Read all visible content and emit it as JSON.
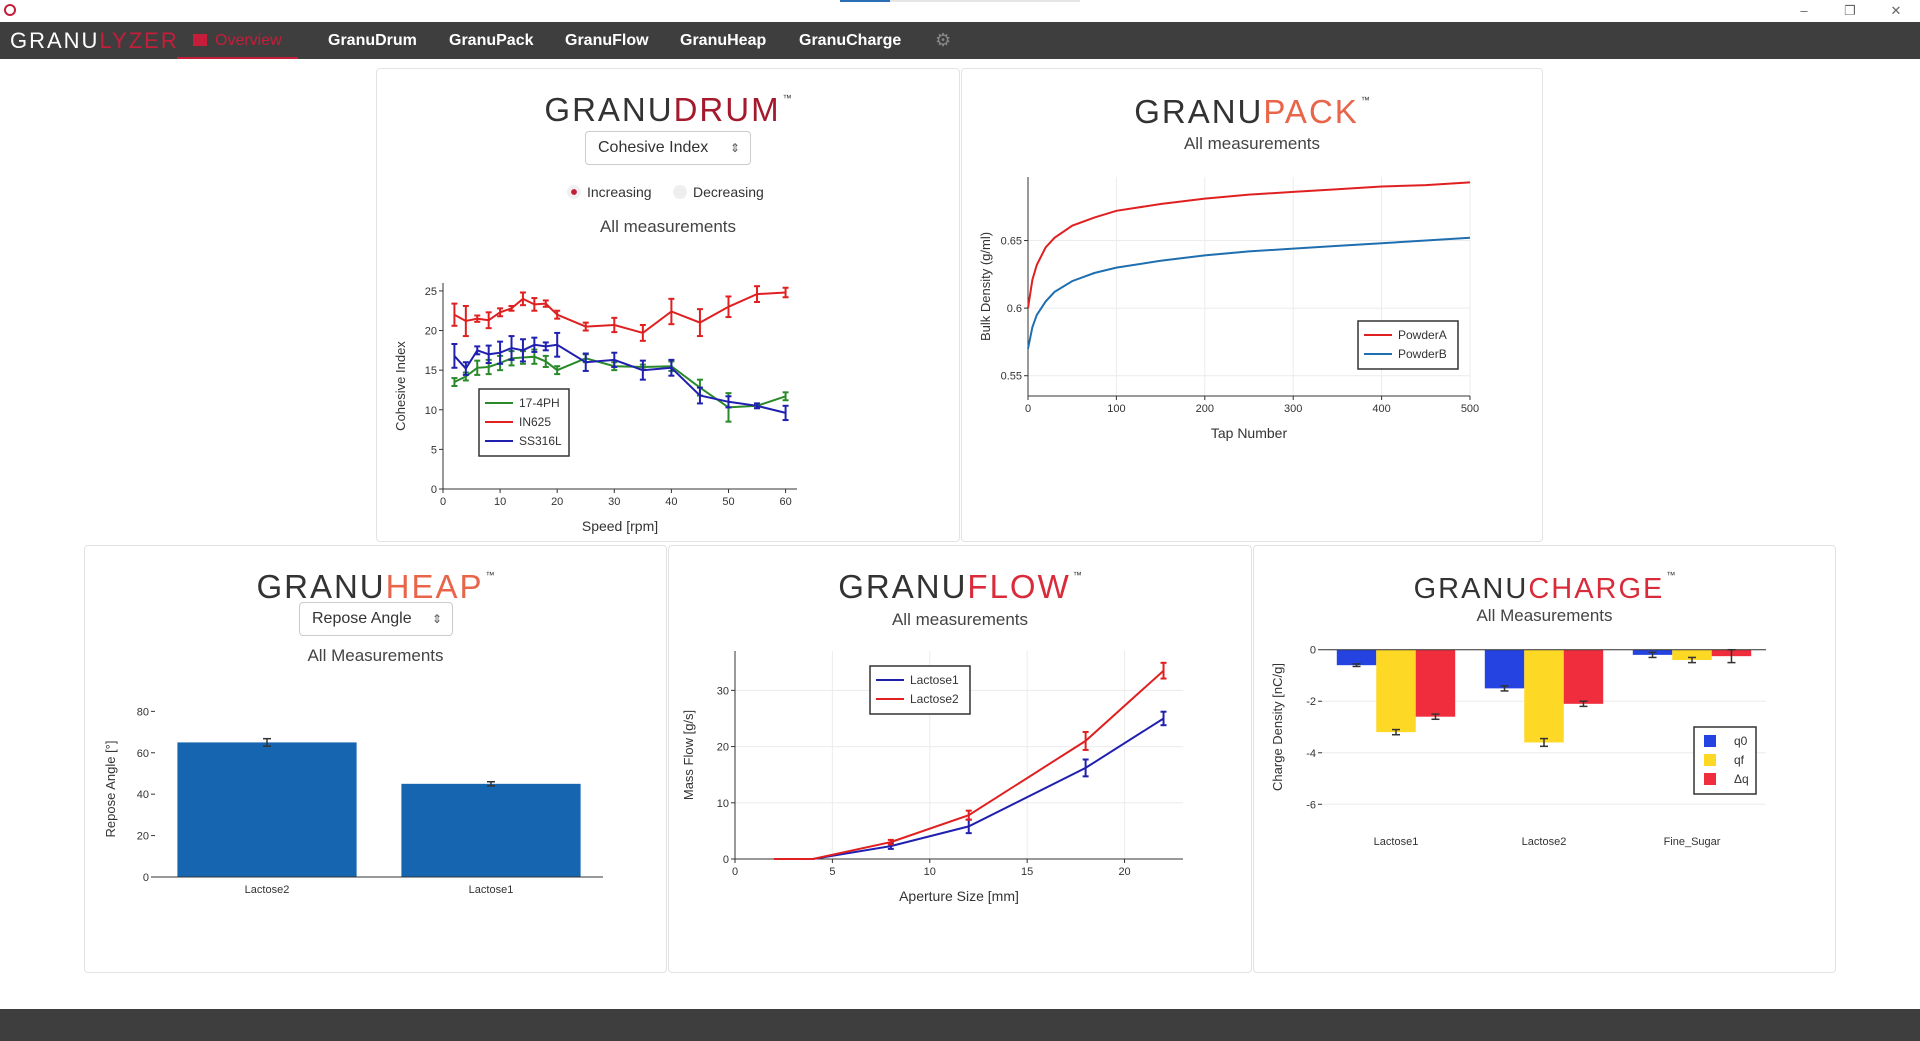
{
  "nav": {
    "logo_a": "GRANU",
    "logo_b": "LYZER",
    "items": [
      "Overview",
      "GranuDrum",
      "GranuPack",
      "GranuFlow",
      "GranuHeap",
      "GranuCharge"
    ]
  },
  "window": {
    "minimize": "–",
    "restore": "❐",
    "close": "✕"
  },
  "colors": {
    "brand_red": "#c41e3a",
    "nav_bg": "#3e3e3e"
  },
  "icons": {
    "gear": "gear-icon",
    "app": "app-icon"
  },
  "drum": {
    "brand_a": "GRANU",
    "brand_b": "DRUM",
    "tm": "™",
    "select_value": "Cohesive Index",
    "radio_increasing": "Increasing",
    "radio_decreasing": "Decreasing",
    "subtitle": "All measurements"
  },
  "pack": {
    "brand_a": "GRANU",
    "brand_b": "PACK",
    "tm": "™",
    "subtitle": "All measurements"
  },
  "heap": {
    "brand_a": "GRANU",
    "brand_b": "HEAP",
    "tm": "™",
    "select_value": "Repose Angle",
    "subtitle": "All Measurements"
  },
  "flow": {
    "brand_a": "GRANU",
    "brand_b": "FLOW",
    "tm": "™",
    "subtitle": "All measurements"
  },
  "charge": {
    "brand_a": "GRANU",
    "brand_b": "CHARGE",
    "tm": "™",
    "subtitle": "All Measurements"
  },
  "chart_data": [
    {
      "id": "drum",
      "type": "line",
      "xlabel": "Speed [rpm]",
      "ylabel": "Cohesive Index",
      "xlim": [
        0,
        62
      ],
      "ylim": [
        0,
        26
      ],
      "xticks": [
        0,
        10,
        20,
        30,
        40,
        50,
        60
      ],
      "yticks": [
        0,
        5,
        10,
        15,
        20,
        25
      ],
      "legend_position": "bottom-left",
      "series": [
        {
          "name": "17-4PH",
          "color": "#2a8a2a",
          "x": [
            2,
            4,
            6,
            8,
            10,
            12,
            14,
            16,
            18,
            20,
            25,
            30,
            35,
            40,
            45,
            50,
            55,
            60
          ],
          "y": [
            13.5,
            14.2,
            15.3,
            15.4,
            15.9,
            16.5,
            16.6,
            16.7,
            16.1,
            15.0,
            16.5,
            15.5,
            15.4,
            15.5,
            12.8,
            10.3,
            10.5,
            11.7
          ],
          "err": [
            0.5,
            0.5,
            0.9,
            0.9,
            0.9,
            0.9,
            0.8,
            0.9,
            0.7,
            0.5,
            0.5,
            0.5,
            0.3,
            0.6,
            1.0,
            1.8,
            0.3,
            0.5
          ]
        },
        {
          "name": "IN625",
          "color": "#e02020",
          "x": [
            2,
            4,
            6,
            8,
            10,
            12,
            14,
            16,
            18,
            20,
            25,
            30,
            35,
            40,
            45,
            50,
            55,
            60
          ],
          "y": [
            22.0,
            21.2,
            21.5,
            21.3,
            22.3,
            22.8,
            24.0,
            23.3,
            23.4,
            22.0,
            20.5,
            20.7,
            19.7,
            22.4,
            21.0,
            23.0,
            24.6,
            24.8
          ],
          "err": [
            1.4,
            1.9,
            0.4,
            1.0,
            0.5,
            0.3,
            0.8,
            0.8,
            0.4,
            0.5,
            0.5,
            0.9,
            1.0,
            1.6,
            1.7,
            1.3,
            1.0,
            0.6
          ]
        },
        {
          "name": "SS316L",
          "color": "#2020b0",
          "x": [
            2,
            4,
            6,
            8,
            10,
            12,
            14,
            16,
            18,
            20,
            25,
            30,
            35,
            40,
            45,
            50,
            55,
            60
          ],
          "y": [
            16.8,
            15.2,
            17.5,
            17.0,
            17.2,
            17.8,
            17.5,
            18.2,
            18.0,
            18.2,
            16.0,
            16.3,
            15.0,
            15.3,
            11.8,
            11.0,
            10.5,
            9.6
          ],
          "err": [
            1.5,
            0.8,
            0.5,
            1.1,
            1.4,
            1.5,
            1.4,
            0.9,
            0.5,
            1.5,
            1.1,
            0.9,
            1.2,
            1.0,
            1.0,
            0.7,
            0.3,
            0.9
          ]
        }
      ]
    },
    {
      "id": "pack",
      "type": "line",
      "xlabel": "Tap Number",
      "ylabel": "Bulk Density (g/ml)",
      "xlim": [
        0,
        500
      ],
      "ylim": [
        0.535,
        0.697
      ],
      "xticks": [
        0,
        100,
        200,
        300,
        400,
        500
      ],
      "yticks": [
        0.55,
        0.6,
        0.65
      ],
      "legend_position": "bottom-right",
      "series": [
        {
          "name": "PowderA",
          "color": "#e02020",
          "x": [
            0,
            5,
            10,
            20,
            30,
            50,
            75,
            100,
            150,
            200,
            250,
            300,
            350,
            400,
            450,
            500
          ],
          "y": [
            0.6,
            0.621,
            0.632,
            0.645,
            0.652,
            0.661,
            0.667,
            0.672,
            0.677,
            0.681,
            0.684,
            0.686,
            0.688,
            0.69,
            0.691,
            0.693
          ]
        },
        {
          "name": "PowderB",
          "color": "#1f6fb0",
          "x": [
            0,
            5,
            10,
            20,
            30,
            50,
            75,
            100,
            150,
            200,
            250,
            300,
            350,
            400,
            450,
            500
          ],
          "y": [
            0.57,
            0.586,
            0.595,
            0.605,
            0.612,
            0.62,
            0.626,
            0.63,
            0.635,
            0.639,
            0.642,
            0.644,
            0.646,
            0.648,
            0.65,
            0.652
          ]
        }
      ]
    },
    {
      "id": "heap",
      "type": "bar",
      "xlabel": "",
      "ylabel": "Repose Angle [°]",
      "ylim": [
        0,
        85
      ],
      "yticks": [
        0,
        20,
        40,
        60,
        80
      ],
      "categories": [
        "Lactose2",
        "Lactose1"
      ],
      "values": [
        65.0,
        45.0
      ],
      "err": [
        1.8,
        1.0
      ],
      "color": "#1565b0"
    },
    {
      "id": "flow",
      "type": "line",
      "xlabel": "Aperture Size [mm]",
      "ylabel": "Mass Flow [g/s]",
      "xlim": [
        0,
        23
      ],
      "ylim": [
        0,
        37
      ],
      "xticks": [
        0,
        5,
        10,
        15,
        20
      ],
      "yticks": [
        0,
        10,
        20,
        30
      ],
      "legend_position": "top-left",
      "series": [
        {
          "name": "Lactose1",
          "color": "#2020b0",
          "x": [
            2,
            4,
            8,
            12,
            18,
            22
          ],
          "y": [
            0,
            0,
            2.3,
            5.8,
            16.2,
            25.0
          ],
          "err": [
            0,
            0,
            0.5,
            1.2,
            1.5,
            1.2
          ]
        },
        {
          "name": "Lactose2",
          "color": "#e02020",
          "x": [
            2,
            4,
            8,
            12,
            18,
            22
          ],
          "y": [
            0,
            0,
            3.0,
            7.8,
            21.0,
            33.5
          ],
          "err": [
            0,
            0,
            0.4,
            0.8,
            1.6,
            1.4
          ]
        }
      ]
    },
    {
      "id": "charge",
      "type": "bar",
      "xlabel": "",
      "ylabel": "Charge Density [nC/g]",
      "ylim": [
        -6.3,
        0.3
      ],
      "yticks": [
        0,
        -2,
        -4,
        -6
      ],
      "categories": [
        "Lactose1",
        "Lactose2",
        "Fine_Sugar"
      ],
      "legend_position": "bottom-right",
      "series": [
        {
          "name": "q0",
          "color": "#2443e0",
          "values": [
            -0.6,
            -1.5,
            -0.2
          ],
          "err": [
            0.05,
            0.1,
            0.1
          ]
        },
        {
          "name": "qf",
          "color": "#fdd825",
          "values": [
            -3.2,
            -3.6,
            -0.4
          ],
          "err": [
            0.1,
            0.15,
            0.1
          ]
        },
        {
          "name": "Δq",
          "color": "#ef2d3d",
          "values": [
            -2.6,
            -2.1,
            -0.25
          ],
          "err": [
            0.1,
            0.1,
            0.25
          ]
        }
      ]
    }
  ]
}
